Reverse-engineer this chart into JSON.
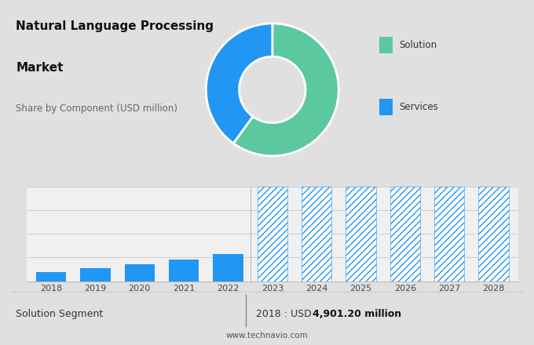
{
  "title_line1": "Natural Language Processing",
  "title_line2": "Market",
  "subtitle": "Share by Component (USD million)",
  "donut_values": [
    60,
    40
  ],
  "donut_colors": [
    "#5bc8a0",
    "#2196f3"
  ],
  "legend_solution_color": "#5bc8a0",
  "legend_services_color": "#2196f3",
  "legend_solution_label": "Solution",
  "legend_services_label": "Services",
  "bar_years": [
    2018,
    2019,
    2020,
    2021,
    2022,
    2023,
    2024,
    2025,
    2026,
    2027,
    2028
  ],
  "bar_values_solid": [
    1.0,
    1.35,
    1.75,
    2.25,
    2.85,
    10.0,
    10.0,
    10.0,
    10.0,
    10.0,
    10.0
  ],
  "bar_color_solid": "#2196f3",
  "bar_color_hatch": "#2196f3",
  "hatch_pattern": "////",
  "n_solid": 5,
  "footer_left": "Solution Segment",
  "footer_right_label": "2018 : USD ",
  "footer_right_value": "4,901.20 million",
  "footer_url": "www.technavio.com",
  "top_bg_color": "#e0e0e0",
  "bottom_bg_color": "#ffffff",
  "bar_bg_color": "#f0f0f0"
}
